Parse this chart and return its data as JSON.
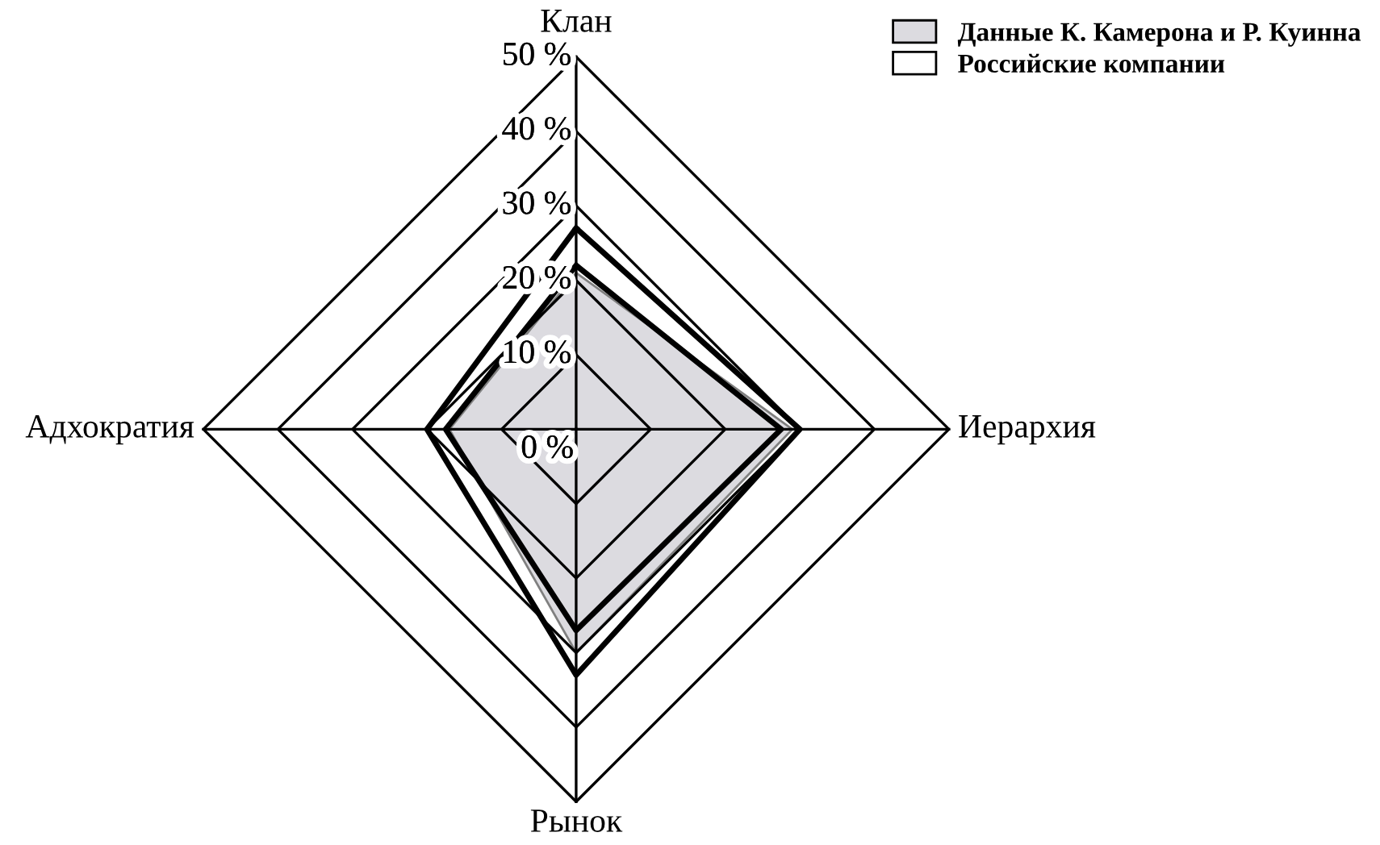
{
  "chart_data": {
    "type": "radar",
    "categories": [
      "Клан",
      "Иерархия",
      "Рынок",
      "Адхократия"
    ],
    "ylim": [
      0,
      50
    ],
    "yticks": [
      {
        "value": 0,
        "label": "0 %"
      },
      {
        "value": 10,
        "label": "10 %"
      },
      {
        "value": 20,
        "label": "20 %"
      },
      {
        "value": 30,
        "label": "30 %"
      },
      {
        "value": 40,
        "label": "40 %"
      },
      {
        "value": 50,
        "label": "50 %"
      }
    ],
    "legend": "top right",
    "series": [
      {
        "name": "Данные К. Камерона и Р. Куинна",
        "color": "#dcdbe0",
        "values": [
          21,
          29,
          30,
          17
        ]
      },
      {
        "name": "Российские компании",
        "color": "#000000",
        "values": [
          27,
          30,
          33,
          20
        ]
      },
      {
        "color": "#000000",
        "values": [
          22,
          27.5,
          27,
          17.5
        ]
      }
    ]
  }
}
